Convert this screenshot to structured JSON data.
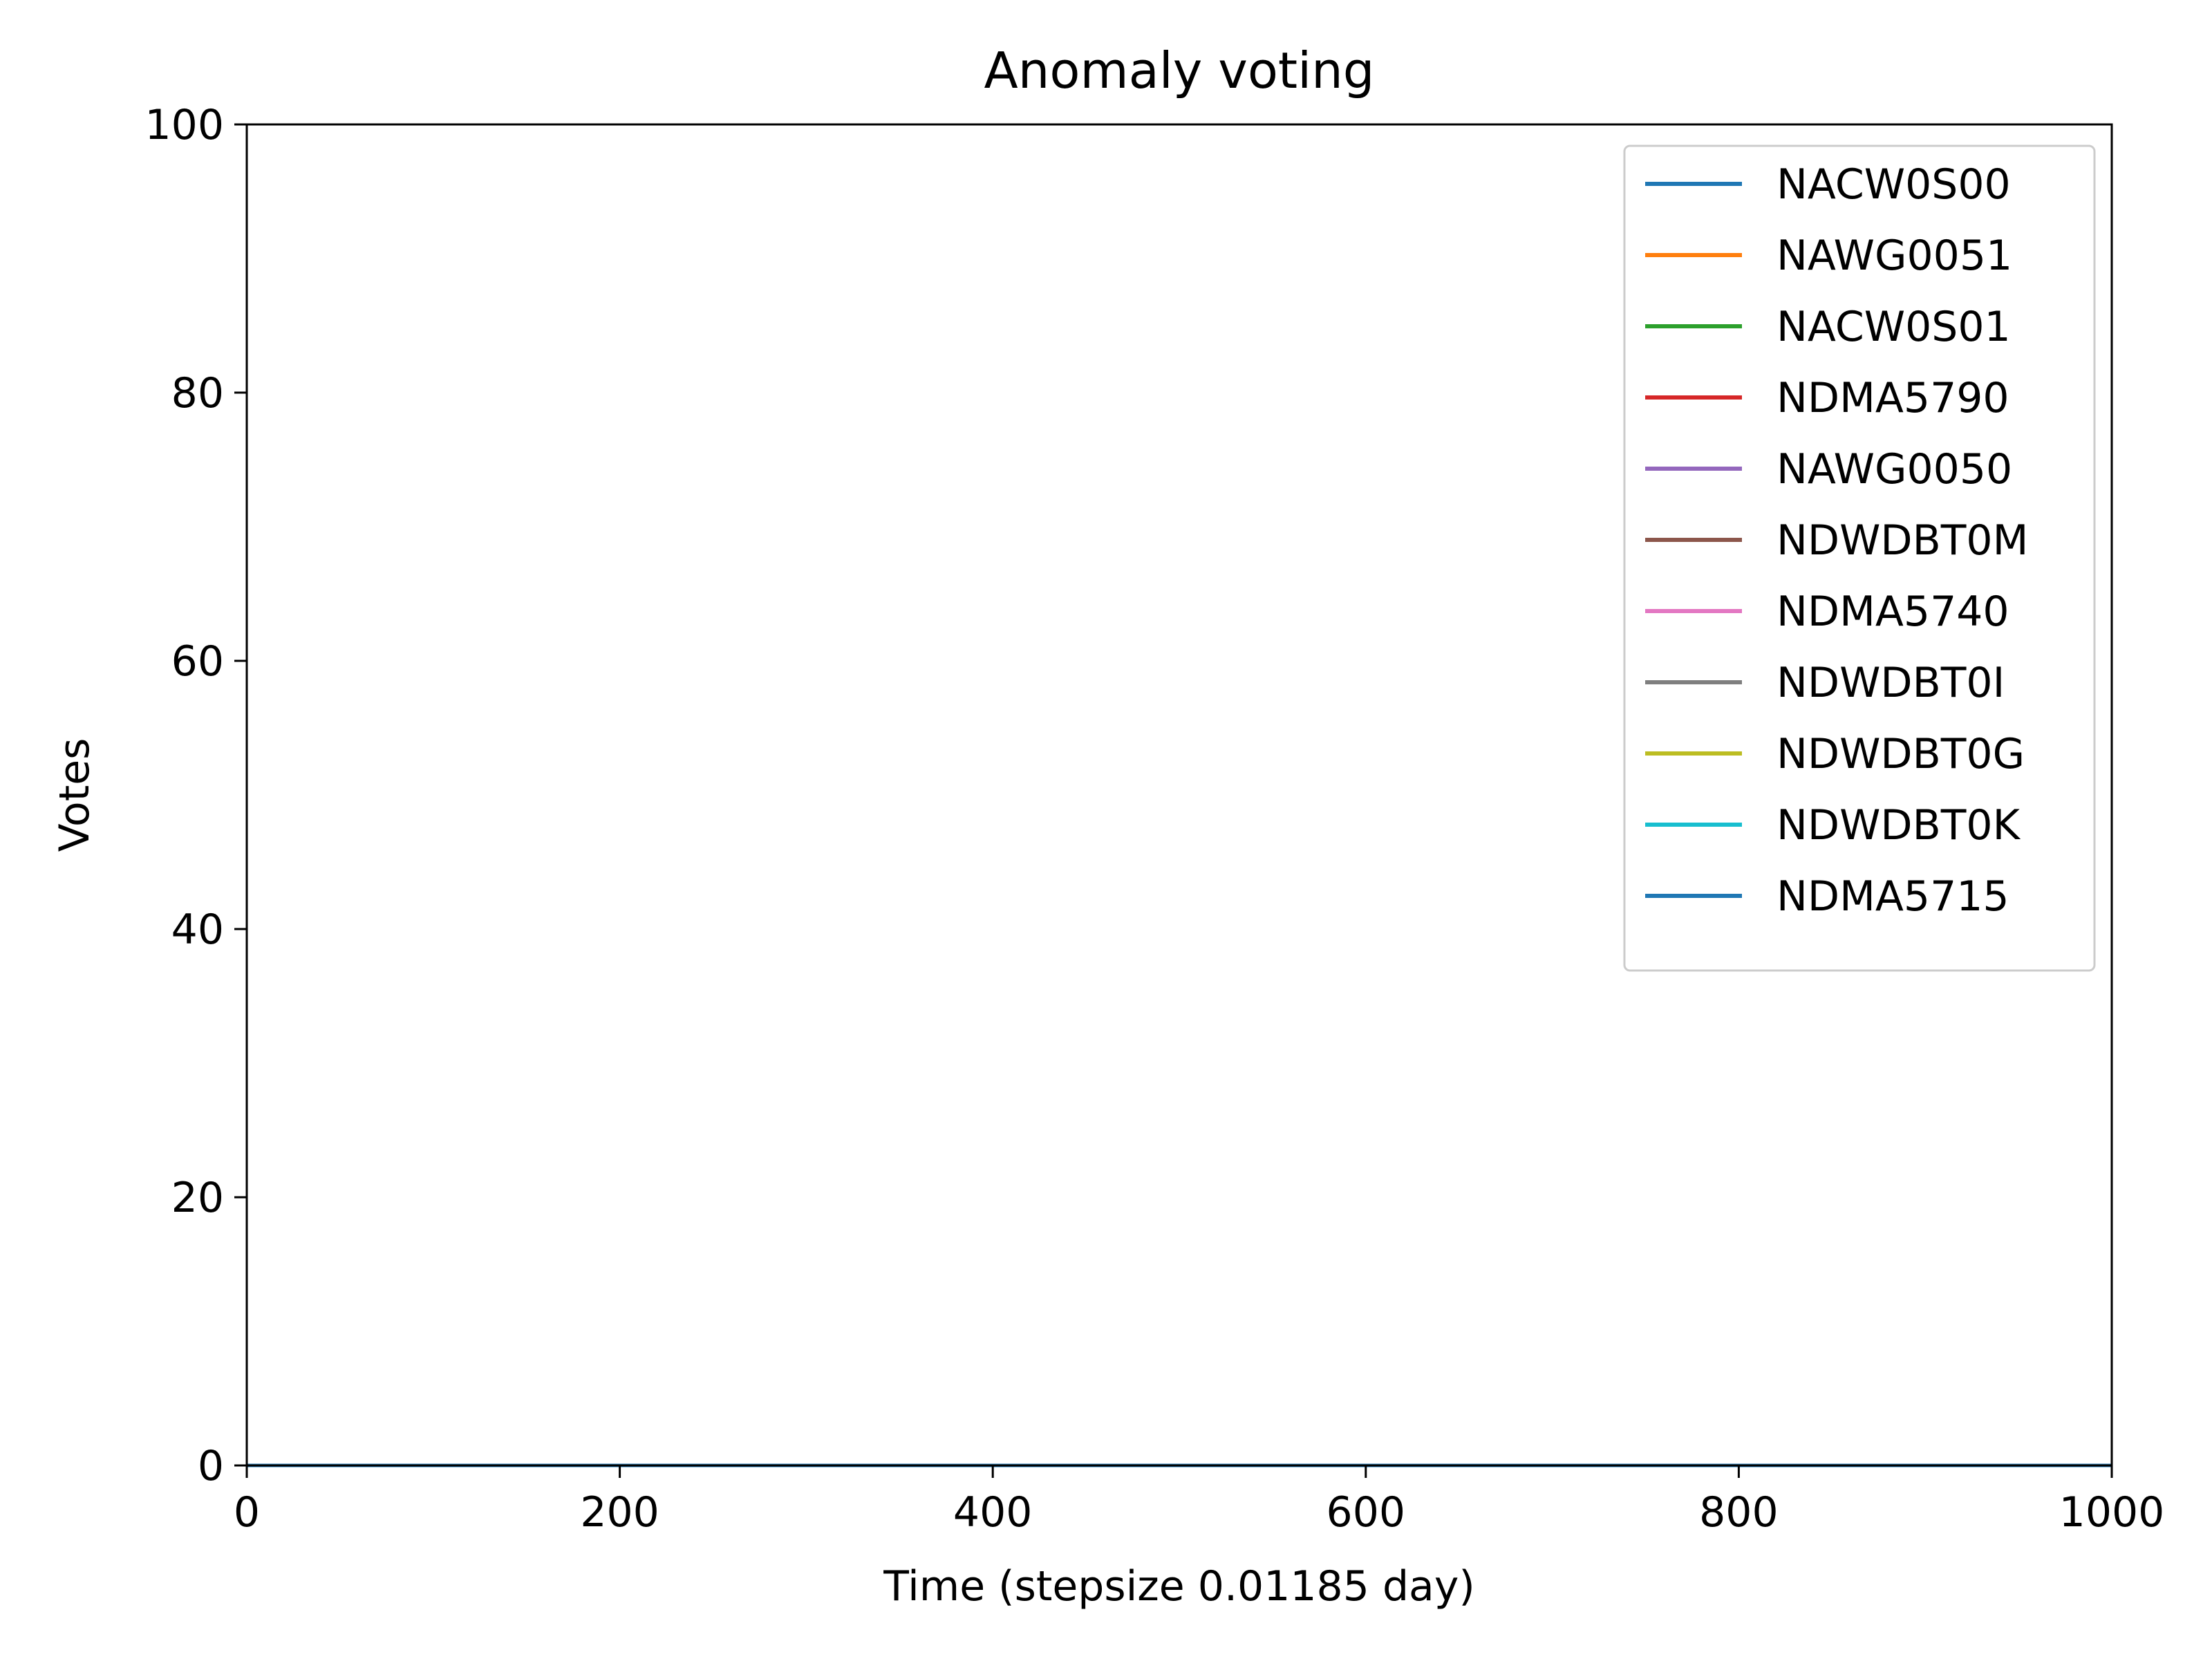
{
  "chart_data": {
    "type": "line",
    "title": "Anomaly voting",
    "xlabel": "Time (stepsize 0.01185 day)",
    "ylabel": "Votes",
    "xlim": [
      0,
      1000
    ],
    "ylim": [
      0,
      100
    ],
    "xticks": [
      0,
      200,
      400,
      600,
      800,
      1000
    ],
    "yticks": [
      0,
      20,
      40,
      60,
      80,
      100
    ],
    "grid": false,
    "legend_position": "top-right",
    "x": [
      0,
      1000
    ],
    "series": [
      {
        "name": "NACW0S00",
        "color": "#1f77b4",
        "values": [
          0,
          0
        ]
      },
      {
        "name": "NAWG0051",
        "color": "#ff7f0e",
        "values": [
          0,
          0
        ]
      },
      {
        "name": "NACW0S01",
        "color": "#2ca02c",
        "values": [
          0,
          0
        ]
      },
      {
        "name": "NDMA5790",
        "color": "#d62728",
        "values": [
          0,
          0
        ]
      },
      {
        "name": "NAWG0050",
        "color": "#9467bd",
        "values": [
          0,
          0
        ]
      },
      {
        "name": "NDWDBT0M",
        "color": "#8c564b",
        "values": [
          0,
          0
        ]
      },
      {
        "name": "NDMA5740",
        "color": "#e377c2",
        "values": [
          0,
          0
        ]
      },
      {
        "name": "NDWDBT0I",
        "color": "#7f7f7f",
        "values": [
          0,
          0
        ]
      },
      {
        "name": "NDWDBT0G",
        "color": "#bcbd22",
        "values": [
          0,
          0
        ]
      },
      {
        "name": "NDWDBT0K",
        "color": "#17becf",
        "values": [
          0,
          0
        ]
      },
      {
        "name": "NDMA5715",
        "color": "#1f77b4",
        "values": [
          0,
          0
        ]
      }
    ]
  }
}
